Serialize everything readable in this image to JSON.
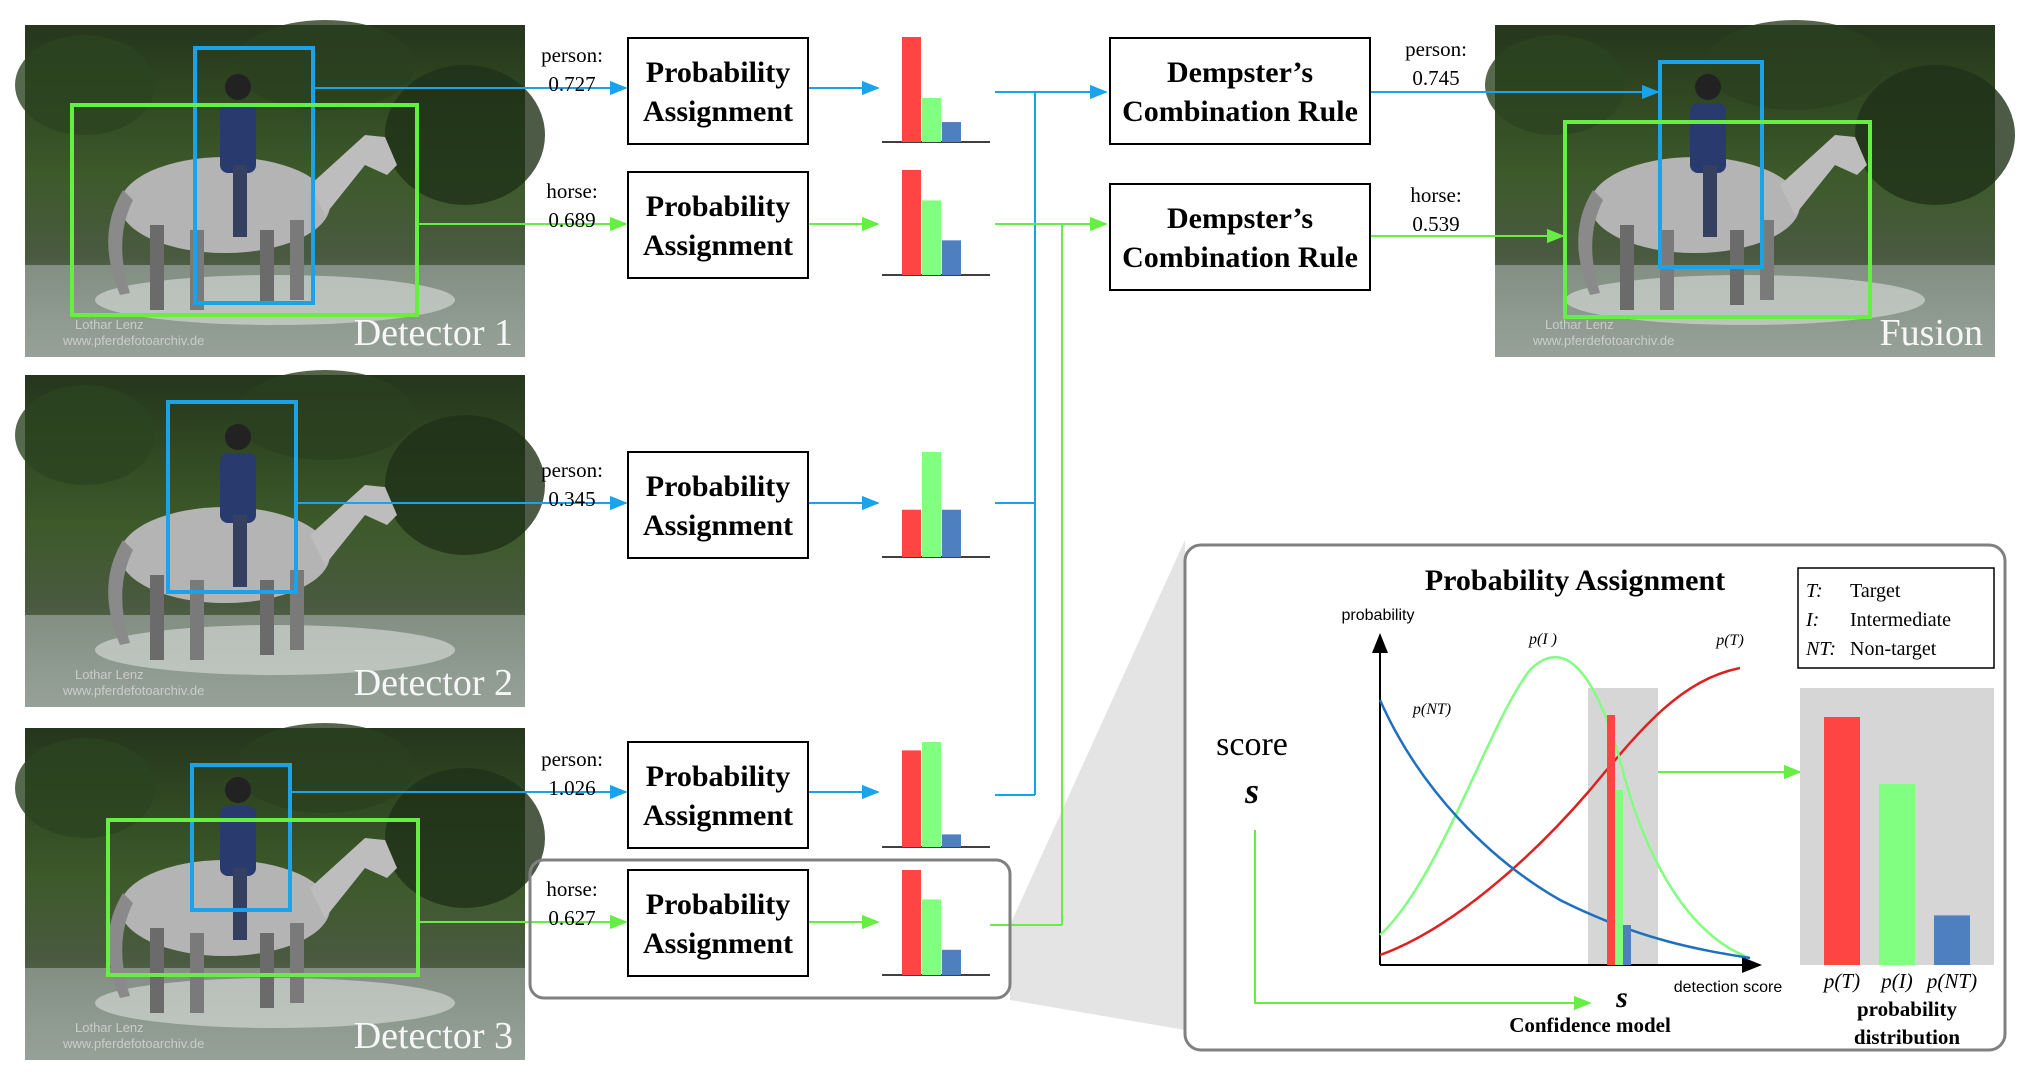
{
  "detectors": [
    {
      "caption": "Detector 1",
      "watermark_name": "Lothar Lenz",
      "watermark_url": "www.pferdefotoarchiv.de",
      "detections": [
        {
          "class": "person:",
          "score": "0.727",
          "bars": [
            1.0,
            0.42,
            0.19
          ]
        },
        {
          "class": "horse:",
          "score": "0.689",
          "bars": [
            1.0,
            0.71,
            0.33
          ]
        }
      ]
    },
    {
      "caption": "Detector 2",
      "watermark_name": "Lothar Lenz",
      "watermark_url": "www.pferdefotoarchiv.de",
      "detections": [
        {
          "class": "person:",
          "score": "0.345",
          "bars": [
            0.45,
            1.0,
            0.45
          ]
        }
      ]
    },
    {
      "caption": "Detector 3",
      "watermark_name": "Lothar Lenz",
      "watermark_url": "www.pferdefotoarchiv.de",
      "detections": [
        {
          "class": "person:",
          "score": "1.026",
          "bars": [
            0.92,
            1.0,
            0.12
          ]
        },
        {
          "class": "horse:",
          "score": "0.627",
          "bars": [
            1.0,
            0.72,
            0.24
          ]
        }
      ]
    }
  ],
  "probability_box_label_line1": "Probability",
  "probability_box_label_line2": "Assignment",
  "dempster_line1": "Dempster’s",
  "dempster_line2": "Combination Rule",
  "fusion": {
    "caption": "Fusion",
    "watermark_name": "Lothar Lenz",
    "watermark_url": "www.pferdefotoarchiv.de",
    "outputs": [
      {
        "class": "person:",
        "score": "0.745"
      },
      {
        "class": "horse:",
        "score": "0.539"
      }
    ]
  },
  "detail": {
    "title": "Probability Assignment",
    "score_word": "score",
    "score_symbol": "s",
    "y_axis_label": "probability",
    "x_axis_label": "detection score",
    "x_symbol": "s",
    "caption": "Confidence model",
    "curve_labels": {
      "target": "p(T)",
      "intermediate": "p(I )",
      "nontarget": "p(NT)"
    },
    "legend": [
      {
        "key": "T:",
        "text": "Target"
      },
      {
        "key": "I:",
        "text": "Intermediate"
      },
      {
        "key": "NT:",
        "text": "Non-target"
      }
    ],
    "dist_labels": [
      "p(T)",
      "p(I)",
      "p(NT)"
    ],
    "dist_values": [
      1.0,
      0.73,
      0.2
    ],
    "dist_caption_line1": "probability",
    "dist_caption_line2": "distribution"
  },
  "colors": {
    "target": "#ff4444",
    "intermediate": "#80ff80",
    "nontarget": "#4e7fbf",
    "person_box": "#1aa3e8",
    "horse_box": "#66ee44",
    "panel_border": "#808080"
  }
}
